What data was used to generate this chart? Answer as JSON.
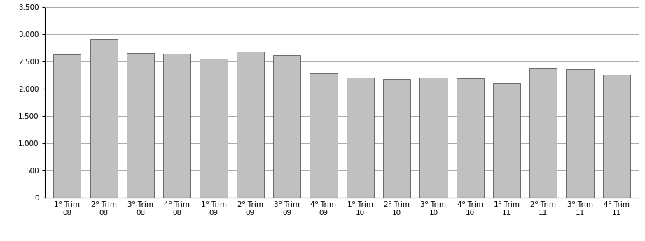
{
  "categories_line1": [
    "1º Trim",
    "2º Trim",
    "3º Trim",
    "4º Trim",
    "1º Trim",
    "2º Trim",
    "3º Trim",
    "4º Trim",
    "1º Trim",
    "2º Trim",
    "3º Trim",
    "4º Trim",
    "1º Trim",
    "2º Trim",
    "3º Trim",
    "4º Trim"
  ],
  "categories_line2": [
    "08",
    "08",
    "08",
    "08",
    "09",
    "09",
    "09",
    "09",
    "10",
    "10",
    "10",
    "10",
    "11",
    "11",
    "11",
    "11"
  ],
  "values": [
    2630,
    2920,
    2660,
    2650,
    2550,
    2680,
    2620,
    2290,
    2210,
    2185,
    2210,
    2200,
    2100,
    2370,
    2360,
    2260
  ],
  "bar_color": "#C0C0C0",
  "bar_edgecolor": "#555555",
  "ylim": [
    0,
    3500
  ],
  "yticks": [
    0,
    500,
    1000,
    1500,
    2000,
    2500,
    3000,
    3500
  ],
  "ytick_labels": [
    "0",
    "500",
    "1.000",
    "1.500",
    "2.000",
    "2.500",
    "3.000",
    "3.500"
  ],
  "grid_color": "#888888",
  "background_color": "#ffffff",
  "tick_fontsize": 7.5,
  "bar_width": 0.75
}
